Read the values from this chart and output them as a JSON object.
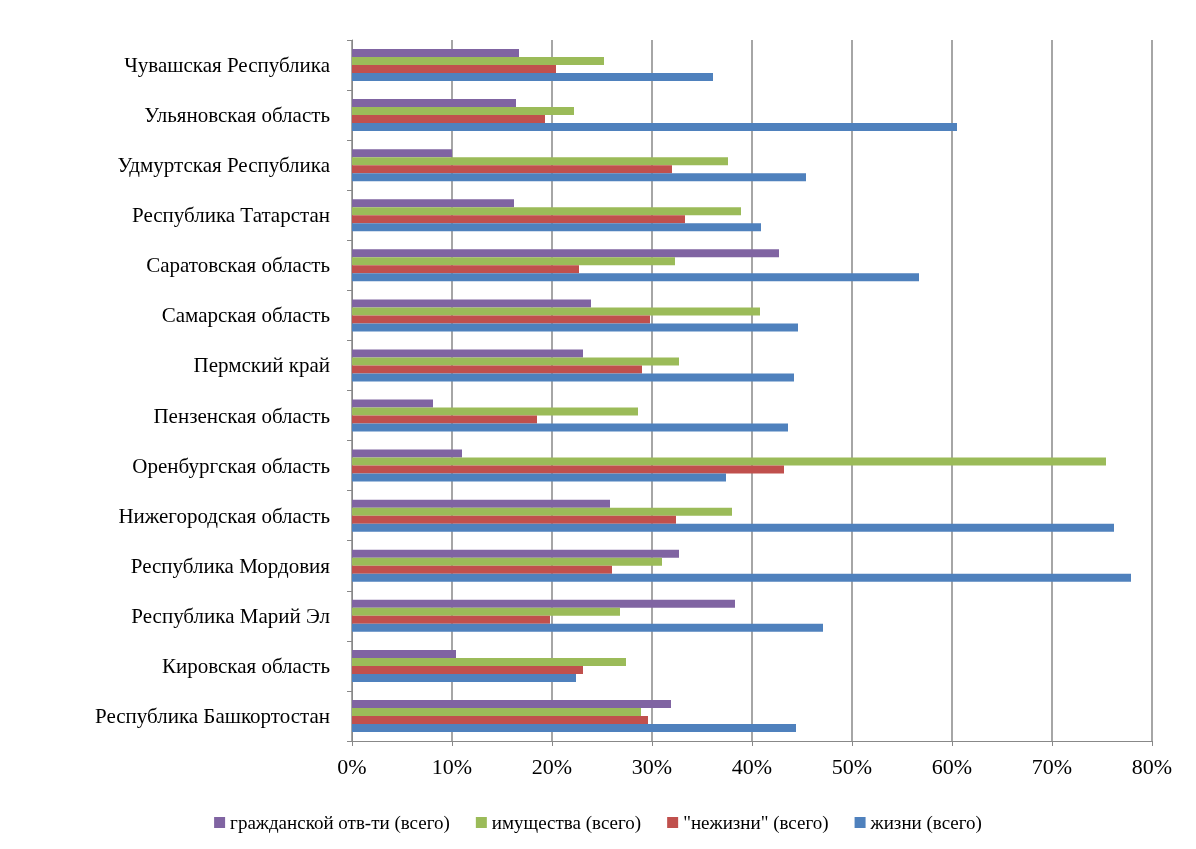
{
  "chart_data": {
    "type": "bar",
    "orientation": "horizontal",
    "categories": [
      "Чувашская Республика",
      "Ульяновская область",
      "Удмуртская Республика",
      "Республика Татарстан",
      "Саратовская область",
      "Самарская область",
      "Пермский край",
      "Пензенская область",
      "Оренбургская область",
      "Нижегородская область",
      "Республика Мордовия",
      "Республика Марий Эл",
      "Кировская область",
      "Республика Башкортостан"
    ],
    "series": [
      {
        "name": "гражданской отв-ти (всего)",
        "color": "#8064a2",
        "values": [
          16.7,
          16.4,
          10.0,
          16.2,
          42.7,
          23.9,
          23.1,
          8.1,
          11.0,
          25.8,
          32.7,
          38.3,
          10.4,
          31.9
        ]
      },
      {
        "name": "имущества (всего)",
        "color": "#9bbb59",
        "values": [
          25.2,
          22.2,
          37.6,
          38.9,
          32.3,
          40.8,
          32.7,
          28.6,
          75.4,
          38.0,
          31.0,
          26.8,
          27.4,
          28.9
        ]
      },
      {
        "name": "\"нежизни\" (всего)",
        "color": "#c0504d",
        "values": [
          20.4,
          19.3,
          32.0,
          33.3,
          22.7,
          29.8,
          29.0,
          18.5,
          43.2,
          32.4,
          26.0,
          19.8,
          23.1,
          29.6
        ]
      },
      {
        "name": "жизни (всего)",
        "color": "#4f81bd",
        "values": [
          36.1,
          60.5,
          45.4,
          40.9,
          56.7,
          44.6,
          44.2,
          43.6,
          37.4,
          76.2,
          77.9,
          47.1,
          22.4,
          44.4
        ]
      }
    ],
    "xlim": [
      0,
      80
    ],
    "xticks": [
      {
        "value": 0,
        "label": "0%"
      },
      {
        "value": 10,
        "label": "10%"
      },
      {
        "value": 20,
        "label": "20%"
      },
      {
        "value": 30,
        "label": "30%"
      },
      {
        "value": 40,
        "label": "40%"
      },
      {
        "value": 50,
        "label": "50%"
      },
      {
        "value": 60,
        "label": "60%"
      },
      {
        "value": 70,
        "label": "70%"
      },
      {
        "value": 80,
        "label": "80%"
      }
    ],
    "grid": "x",
    "legend": "bottom"
  }
}
